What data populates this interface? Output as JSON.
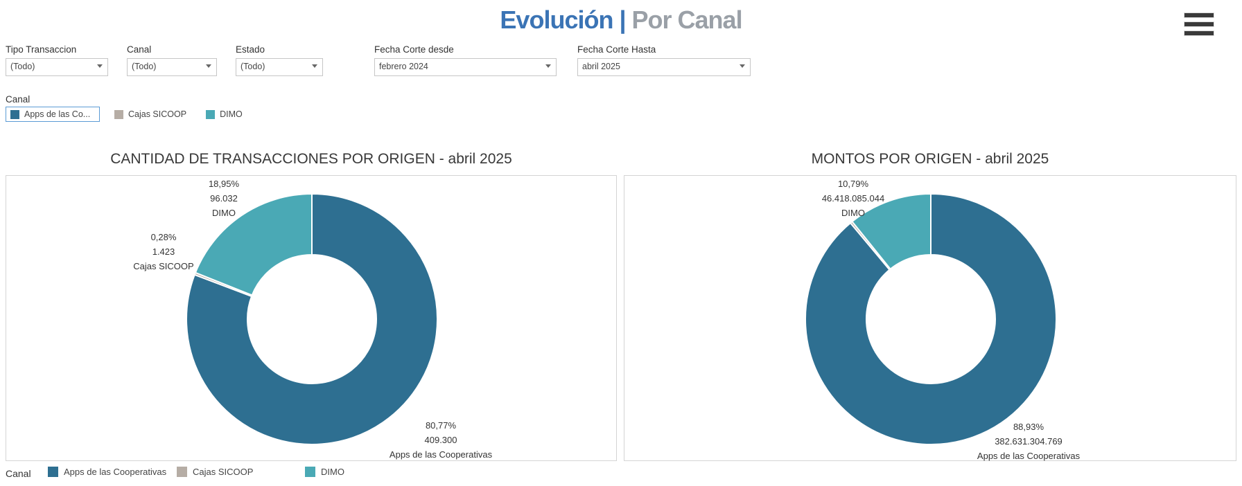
{
  "header": {
    "title_primary": "Evolución |",
    "title_secondary": " Por Canal",
    "title_primary_color": "#3b74b5",
    "title_secondary_color": "#9aa0a7"
  },
  "icons": {
    "menu": "hamburger-menu-icon",
    "dropdown": "caret-down-icon"
  },
  "filters": [
    {
      "label": "Tipo Transaccion",
      "value": "(Todo)"
    },
    {
      "label": "Canal",
      "value": "(Todo)"
    },
    {
      "label": "Estado",
      "value": "(Todo)"
    },
    {
      "label": "Fecha Corte desde",
      "value": "febrero 2024"
    },
    {
      "label": "Fecha Corte Hasta",
      "value": "abril 2025"
    }
  ],
  "canal_quick_filter": {
    "label": "Canal",
    "items": [
      {
        "label": "Apps de las Co...",
        "color": "#2e6f91",
        "selected": true
      },
      {
        "label": "Cajas SICOOP",
        "color": "#b6ada5",
        "selected": false
      },
      {
        "label": "DIMO",
        "color": "#4aa9b5",
        "selected": false
      }
    ]
  },
  "chart_data": [
    {
      "type": "pie",
      "donut": true,
      "title": "CANTIDAD DE TRANSACCIONES POR ORIGEN - abril 2025",
      "categories": [
        "Apps de las Cooperativas",
        "Cajas SICOOP",
        "DIMO"
      ],
      "values": [
        409300,
        1423,
        96032
      ],
      "shares_pct": [
        80.77,
        0.28,
        18.95
      ],
      "colors": [
        "#2e6f91",
        "#b6ada5",
        "#4aa9b5"
      ],
      "legend_position": "bottom",
      "labels": [
        {
          "slice": "DIMO",
          "lines": [
            "18,95%",
            "96.032",
            "DIMO"
          ]
        },
        {
          "slice": "Cajas SICOOP",
          "lines": [
            "0,28%",
            "1.423",
            "Cajas SICOOP"
          ]
        },
        {
          "slice": "Apps de las Cooperativas",
          "lines": [
            "80,77%",
            "409.300",
            "Apps de las Cooperativas"
          ]
        }
      ]
    },
    {
      "type": "pie",
      "donut": true,
      "title": "MONTOS POR ORIGEN -  abril 2025",
      "categories": [
        "Apps de las Cooperativas",
        "Cajas SICOOP",
        "DIMO"
      ],
      "values": [
        382631304769,
        null,
        46418085044
      ],
      "shares_pct": [
        88.93,
        0.28,
        10.79
      ],
      "colors": [
        "#2e6f91",
        "#b6ada5",
        "#4aa9b5"
      ],
      "legend_position": "bottom",
      "labels": [
        {
          "slice": "DIMO",
          "lines": [
            "10,79%",
            "46.418.085.044",
            "DIMO"
          ]
        },
        {
          "slice": "Apps de las Cooperativas",
          "lines": [
            "88,93%",
            "382.631.304.769",
            "Apps de las Cooperativas"
          ]
        }
      ]
    }
  ],
  "bottom_legend": {
    "label": "Canal",
    "items": [
      {
        "label": "Apps de las Cooperativas",
        "color": "#2e6f91"
      },
      {
        "label": "Cajas SICOOP",
        "color": "#b6ada5"
      },
      {
        "label": "DIMO",
        "color": "#4aa9b5"
      }
    ]
  }
}
